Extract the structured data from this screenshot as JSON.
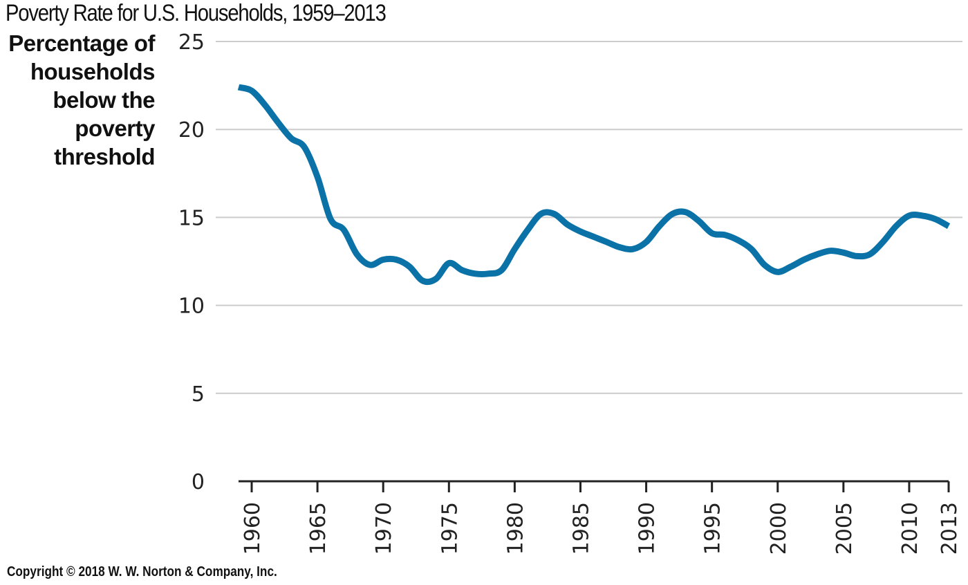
{
  "chart_data": {
    "type": "line",
    "title": "Poverty Rate for U.S. Households, 1959–2013",
    "ylabel_lines": [
      "Percentage of",
      "households",
      "below the",
      "poverty",
      "threshold"
    ],
    "xlabel": "",
    "xlim": [
      1959,
      2013
    ],
    "ylim": [
      0,
      25
    ],
    "x_ticks": [
      1960,
      1965,
      1970,
      1975,
      1980,
      1985,
      1990,
      1995,
      2000,
      2005,
      2010,
      2013
    ],
    "y_ticks": [
      0,
      5,
      10,
      15,
      20,
      25
    ],
    "grid": "horizontal",
    "line_color": "#0b72a8",
    "grid_color": "#cccccc",
    "series": [
      {
        "x": [
          1959,
          1960,
          1961,
          1962,
          1963,
          1964,
          1965,
          1966,
          1967,
          1968,
          1969,
          1970,
          1971,
          1972,
          1973,
          1974,
          1975,
          1976,
          1977,
          1978,
          1979,
          1980,
          1981,
          1982,
          1983,
          1984,
          1985,
          1986,
          1987,
          1988,
          1989,
          1990,
          1991,
          1992,
          1993,
          1994,
          1995,
          1996,
          1997,
          1998,
          1999,
          2000,
          2001,
          2002,
          2003,
          2004,
          2005,
          2006,
          2007,
          2008,
          2009,
          2010,
          2011,
          2012,
          2013
        ],
        "values": [
          22.4,
          22.2,
          21.4,
          20.4,
          19.5,
          19.0,
          17.3,
          14.9,
          14.3,
          12.9,
          12.3,
          12.6,
          12.6,
          12.2,
          11.4,
          11.5,
          12.4,
          12.0,
          11.8,
          11.8,
          12.0,
          13.2,
          14.3,
          15.2,
          15.2,
          14.6,
          14.2,
          13.9,
          13.6,
          13.3,
          13.2,
          13.6,
          14.5,
          15.2,
          15.3,
          14.8,
          14.1,
          14.0,
          13.7,
          13.2,
          12.3,
          11.9,
          12.2,
          12.6,
          12.9,
          13.1,
          13.0,
          12.8,
          12.9,
          13.6,
          14.5,
          15.1,
          15.1,
          14.9,
          14.5
        ]
      }
    ]
  },
  "footer": {
    "copyright": "Copyright © 2018 W. W. Norton & Company, Inc."
  }
}
